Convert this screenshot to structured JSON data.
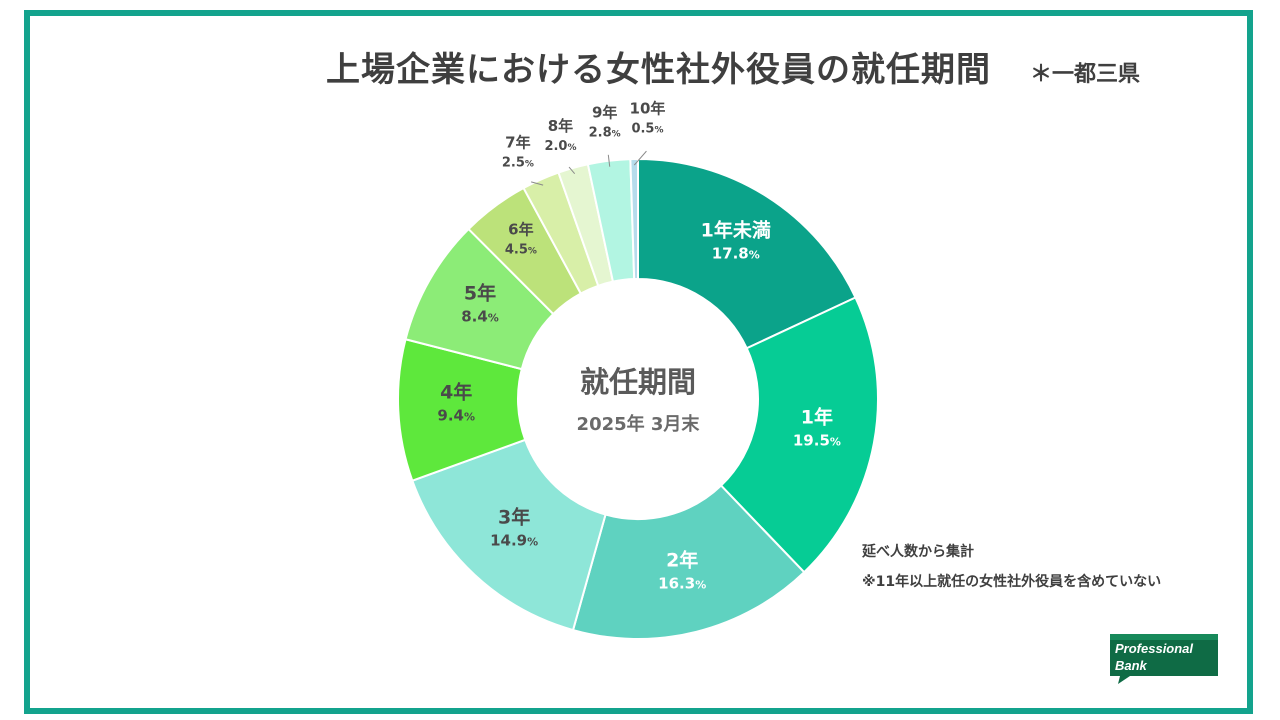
{
  "chart_data": {
    "type": "pie",
    "variant": "donut",
    "title": "上場企業における女性社外役員の就任期間",
    "region_note": "＊一都三県",
    "center_title": "就任期間",
    "center_subtitle": "2025年 3月末",
    "note_count": "延べ人数から集計",
    "note_excluded": "※11年以上就任の女性社外役員を含めていない",
    "categories": [
      "1年未満",
      "1年",
      "2年",
      "3年",
      "4年",
      "5年",
      "6年",
      "7年",
      "8年",
      "9年",
      "10年"
    ],
    "values": [
      17.8,
      19.5,
      16.3,
      14.9,
      9.4,
      8.4,
      4.5,
      2.5,
      2.0,
      2.8,
      0.5
    ],
    "value_labels": [
      "17.8",
      "19.5",
      "16.3",
      "14.9",
      "9.4",
      "8.4",
      "4.5",
      "2.5",
      "2.0",
      "2.8",
      "0.5"
    ],
    "unit": "%",
    "colors": [
      "#0ba38a",
      "#06cc95",
      "#5fd2c0",
      "#8ee6d8",
      "#5ee83c",
      "#8cec77",
      "#bce27a",
      "#d8efa8",
      "#e5f6d1",
      "#b2f5e2",
      "#b6dcec"
    ],
    "label_colors": [
      "#ffffff",
      "#ffffff",
      "#ffffff",
      "#4a4a4a",
      "#4a4a4a",
      "#4a4a4a",
      "#4a4a4a",
      "#4a4a4a",
      "#4a4a4a",
      "#4a4a4a",
      "#4a4a4a"
    ]
  },
  "logo": {
    "line1": "Professional",
    "line2": "Bank"
  },
  "colors": {
    "frame": "#13a38d",
    "text": "#3f3f3f"
  }
}
